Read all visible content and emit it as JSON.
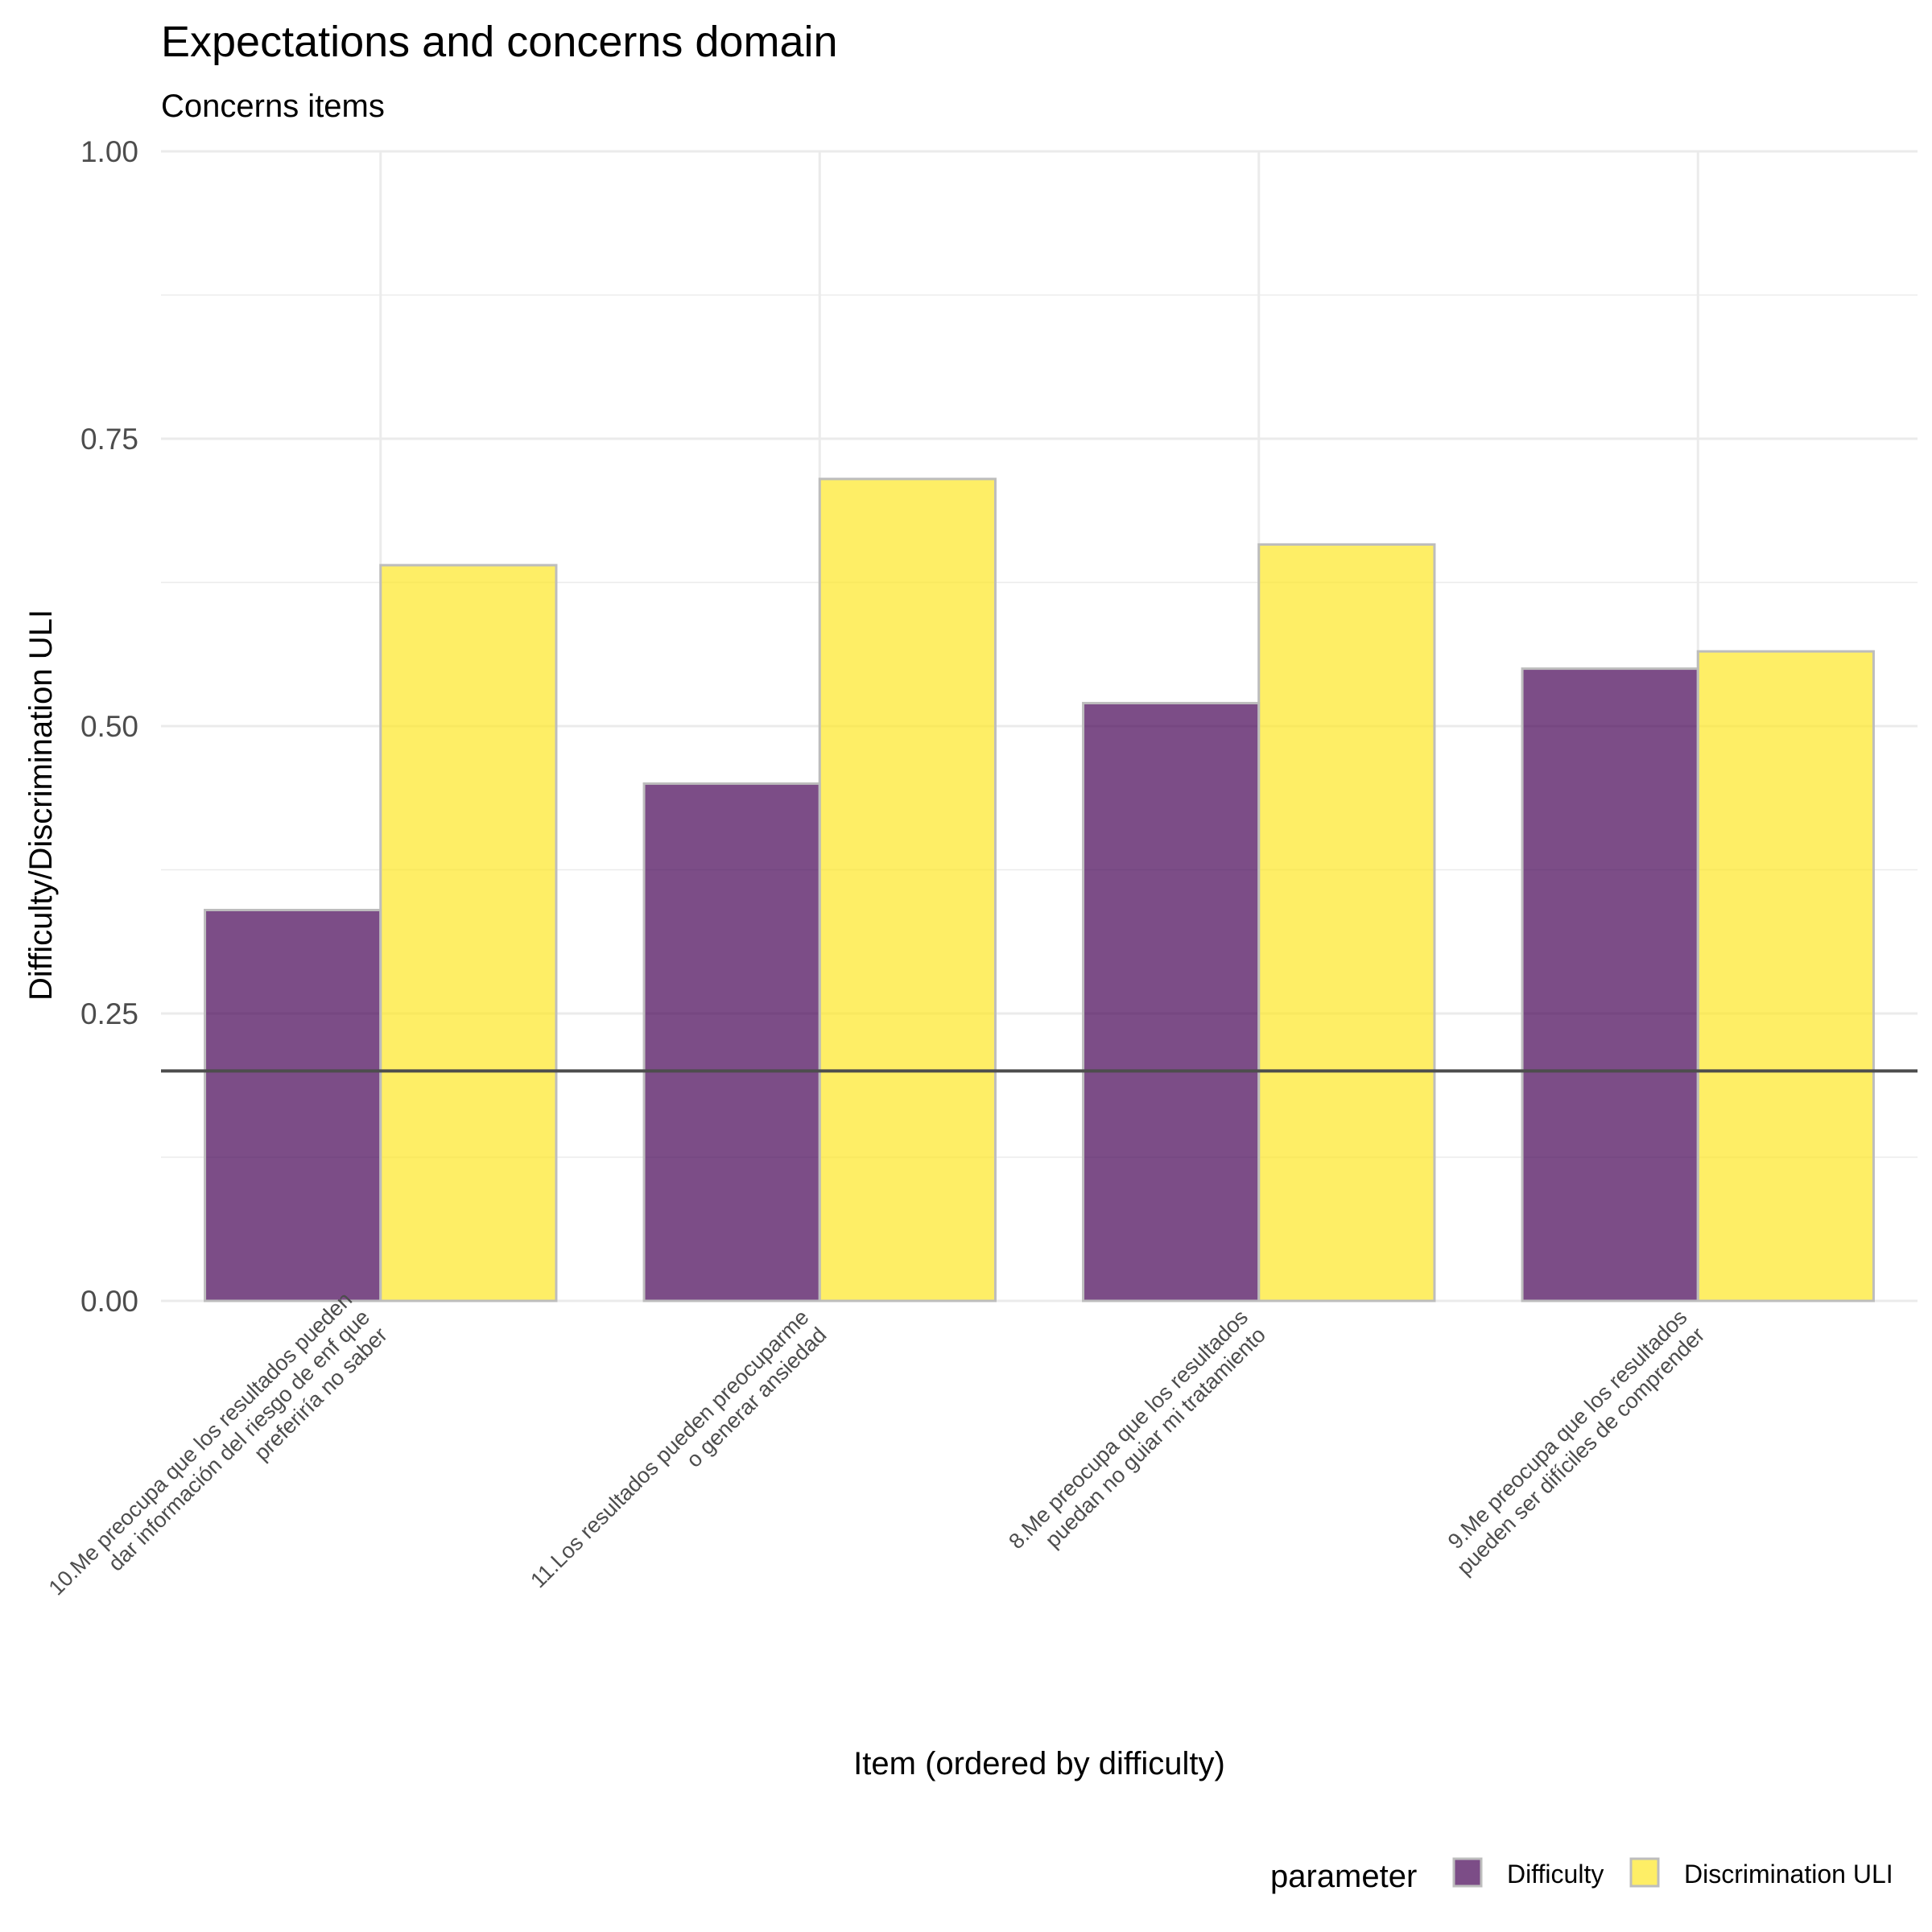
{
  "chart_data": {
    "type": "bar",
    "title": "Expectations and concerns domain",
    "subtitle": "Concerns items",
    "xlabel": "Item (ordered by difficulty)",
    "ylabel": "Difficulty/Discrimination ULI",
    "ylim": [
      0,
      1
    ],
    "yticks": [
      "0.00",
      "0.25",
      "0.50",
      "0.75",
      "1.00"
    ],
    "grid": true,
    "reference_line": 0.2,
    "categories": [
      [
        "10.Me preocupa que los resultados pueden",
        "dar información del riesgo de enf que",
        "preferiría no saber"
      ],
      [
        "11.Los resultados pueden preocuparme",
        "o generar ansiedad"
      ],
      [
        "8.Me preocupa que los resultados",
        "puedan no guiar mi tratamiento"
      ],
      [
        "9.Me preocupa que los resultados",
        "pueden ser difíciles de comprender"
      ]
    ],
    "series": [
      {
        "name": "Difficulty",
        "color": "#440154",
        "values": [
          0.34,
          0.45,
          0.52,
          0.55
        ]
      },
      {
        "name": "Discrimination ULI",
        "color": "#FDE725",
        "values": [
          0.64,
          0.715,
          0.658,
          0.565
        ]
      }
    ],
    "legend": {
      "title": "parameter",
      "position": "bottom-right"
    }
  }
}
